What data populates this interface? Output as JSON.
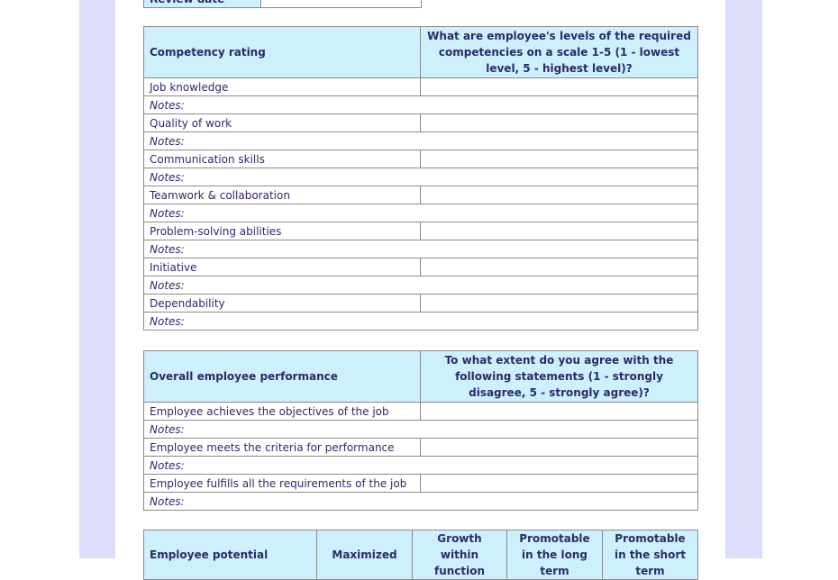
{
  "review": {
    "label": "Review date",
    "value": ""
  },
  "competency": {
    "header": "Competency rating",
    "question": "What are employee's levels of the required competencies on a scale 1-5 (1 - lowest level, 5 - highest level)?",
    "items": [
      "Job knowledge",
      "Quality of work",
      "Communication skills",
      "Teamwork & collaboration",
      "Problem-solving abilities",
      "Initiative",
      "Dependability"
    ],
    "notes_label": "Notes:"
  },
  "performance": {
    "header": "Overall employee performance",
    "question": "To what extent do you agree with the following statements (1 - strongly disagree, 5 - strongly agree)?",
    "items": [
      "Employee achieves the objectives of the job",
      "Employee meets the criteria for performance",
      "Employee fulfills all the requirements of the job"
    ],
    "notes_label": "Notes:"
  },
  "potential": {
    "header": "Employee potential",
    "columns": [
      "Maximized",
      "Growth within function",
      "Promotable in the long term",
      "Promotable in the short term"
    ]
  },
  "colors": {
    "header_fill": "#cdf0fc",
    "text": "#2b2b6b",
    "band": "#dcdcfb"
  }
}
